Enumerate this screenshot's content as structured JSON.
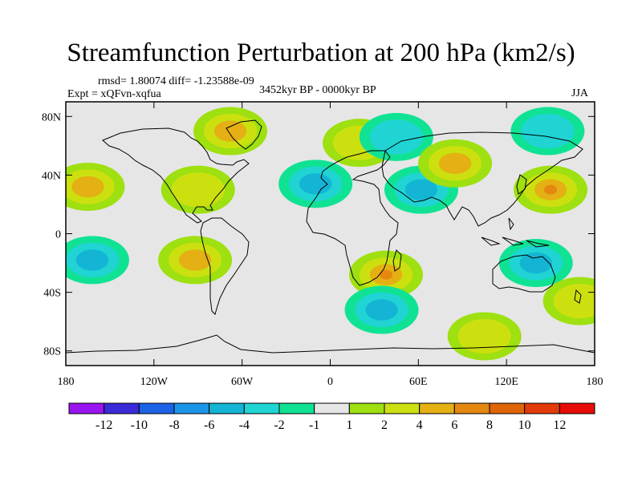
{
  "title": "Streamfunction Perturbation at 200 hPa (km2/s)",
  "stats": "rmsd= 1.80074 diff= -1.23588e-09",
  "experiment": "Expt = xQFvn-xqfua",
  "period": "3452kyr BP - 0000kyr BP",
  "season": "JJA",
  "colors": {
    "land_outline": "#000000",
    "neutral_fill": "#e6e6e6"
  },
  "chart_data": {
    "type": "filled-contour-map",
    "projection": "cylindrical-equidistant",
    "variable": "200 hPa streamfunction perturbation",
    "units": "km2/s",
    "x_range": [
      -180,
      180
    ],
    "y_range": [
      -90,
      90
    ],
    "x_ticks": [
      "180",
      "120W",
      "60W",
      "0",
      "60E",
      "120E",
      "180"
    ],
    "y_ticks": [
      "80N",
      "40N",
      "0",
      "40S",
      "80S"
    ],
    "colorbar": {
      "labels": [
        "-12",
        "-10",
        "-8",
        "-6",
        "-4",
        "-2",
        "-1",
        "1",
        "2",
        "4",
        "6",
        "8",
        "10",
        "12"
      ],
      "colors": [
        "#9a14f0",
        "#3b2ad8",
        "#1c62e6",
        "#1c94e8",
        "#14b4d4",
        "#20d4d4",
        "#10e294",
        "#e6e6e6",
        "#9ee010",
        "#cce010",
        "#e4b014",
        "#e48810",
        "#e06408",
        "#e23a08",
        "#e80c08"
      ]
    },
    "anomalies": [
      {
        "lon": -165,
        "lat": 32,
        "level": 4
      },
      {
        "lon": -162,
        "lat": -18,
        "level": -4
      },
      {
        "lon": -90,
        "lat": 30,
        "level": 2
      },
      {
        "lon": -92,
        "lat": -18,
        "level": 4
      },
      {
        "lon": -68,
        "lat": 70,
        "level": 4
      },
      {
        "lon": -10,
        "lat": 34,
        "level": -4
      },
      {
        "lon": 20,
        "lat": 62,
        "level": 2
      },
      {
        "lon": 38,
        "lat": -28,
        "level": 6
      },
      {
        "lon": 62,
        "lat": 30,
        "level": -4
      },
      {
        "lon": 35,
        "lat": -52,
        "level": -4
      },
      {
        "lon": 45,
        "lat": 66,
        "level": -2
      },
      {
        "lon": 85,
        "lat": 48,
        "level": 4
      },
      {
        "lon": 105,
        "lat": -70,
        "level": 2
      },
      {
        "lon": 150,
        "lat": 30,
        "level": 6
      },
      {
        "lon": 148,
        "lat": 70,
        "level": -2
      },
      {
        "lon": 140,
        "lat": -20,
        "level": -4
      },
      {
        "lon": 170,
        "lat": -46,
        "level": 2
      }
    ]
  }
}
